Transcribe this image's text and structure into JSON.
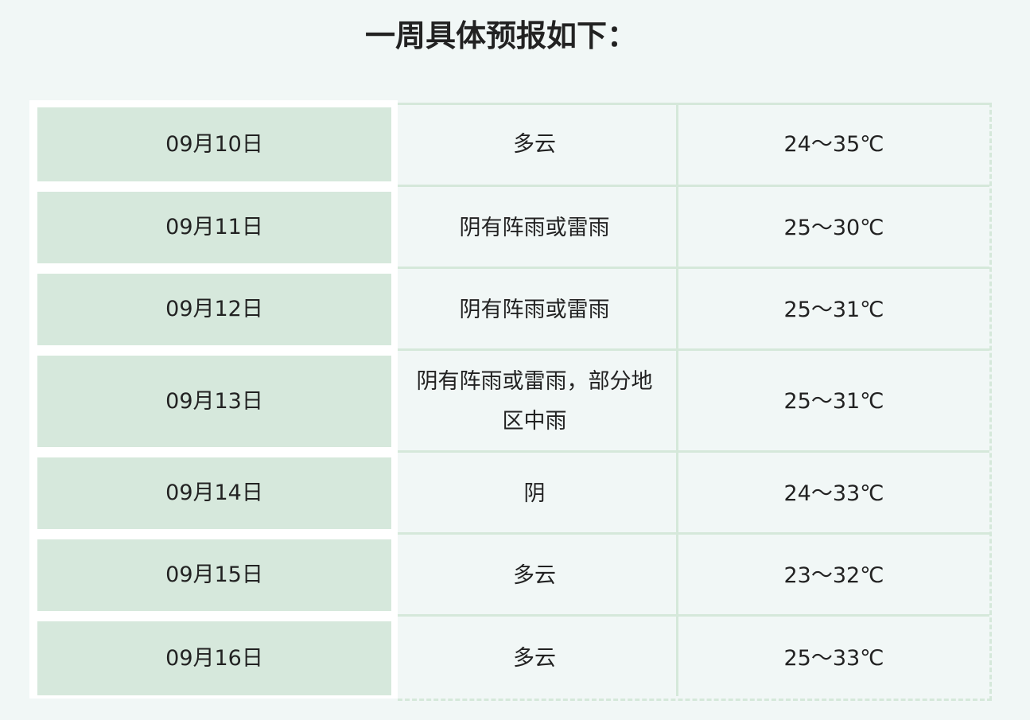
{
  "title": "一周具体预报如下：",
  "table": {
    "rows": [
      [
        "09月10日",
        "多云",
        "24～35℃"
      ],
      [
        "09月11日",
        "阴有阵雨或雷雨",
        "25～30℃"
      ],
      [
        "09月12日",
        "阴有阵雨或雷雨",
        "25～31℃"
      ],
      [
        "09月13日",
        "阴有阵雨或雷雨，部分地区中雨",
        "25～31℃"
      ],
      [
        "09月14日",
        "阴",
        "24～33℃"
      ],
      [
        "09月15日",
        "多云",
        "23～32℃"
      ],
      [
        "09月16日",
        "多云",
        "25～33℃"
      ]
    ]
  }
}
